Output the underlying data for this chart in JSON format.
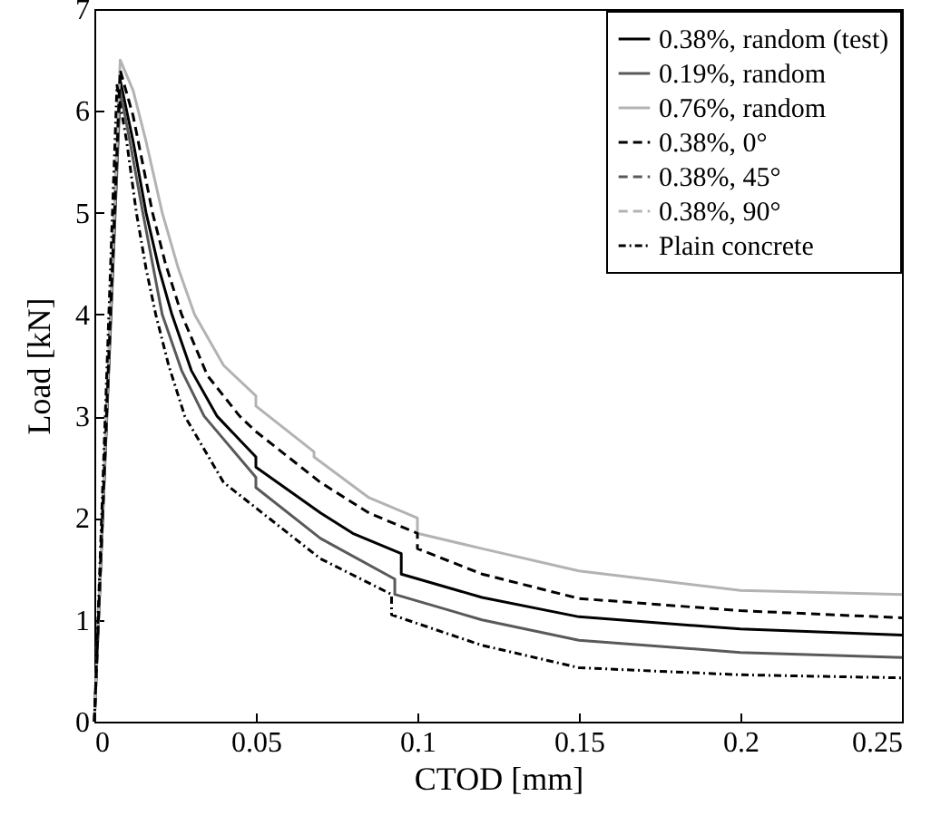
{
  "chart_data": {
    "type": "line",
    "xlabel": "CTOD [mm]",
    "ylabel": "Load [kN]",
    "xlim": [
      0,
      0.25
    ],
    "ylim": [
      0,
      7
    ],
    "xticks": [
      0,
      0.05,
      0.1,
      0.15,
      0.2,
      0.25
    ],
    "yticks": [
      0,
      1,
      2,
      3,
      4,
      5,
      6,
      7
    ],
    "grid": false,
    "legend": "top right",
    "marker": "none",
    "series": [
      {
        "name": "0.38%, random (test)",
        "color": "#000000",
        "line_style": "solid",
        "x": [
          0,
          0.008,
          0.012,
          0.016,
          0.02,
          0.024,
          0.03,
          0.038,
          0.05,
          0.05,
          0.07,
          0.08,
          0.095,
          0.095,
          0.12,
          0.15,
          0.2,
          0.25
        ],
        "values": [
          0,
          6.3,
          5.7,
          5.0,
          4.45,
          4.0,
          3.45,
          3.0,
          2.6,
          2.5,
          2.05,
          1.85,
          1.65,
          1.45,
          1.22,
          1.03,
          0.91,
          0.85
        ]
      },
      {
        "name": "0.19%, random",
        "color": "#595959",
        "line_style": "solid",
        "x": [
          0,
          0.008,
          0.011,
          0.015,
          0.018,
          0.021,
          0.027,
          0.034,
          0.05,
          0.05,
          0.07,
          0.093,
          0.093,
          0.12,
          0.15,
          0.2,
          0.25
        ],
        "values": [
          0,
          6.2,
          5.7,
          5.0,
          4.5,
          4.0,
          3.45,
          3.0,
          2.4,
          2.3,
          1.8,
          1.4,
          1.25,
          1.0,
          0.8,
          0.68,
          0.63
        ]
      },
      {
        "name": "0.76%, random",
        "color": "#b3b3b3",
        "line_style": "solid",
        "x": [
          0,
          0.008,
          0.012,
          0.016,
          0.021,
          0.026,
          0.031,
          0.04,
          0.05,
          0.05,
          0.068,
          0.068,
          0.085,
          0.1,
          0.1,
          0.12,
          0.15,
          0.2,
          0.25
        ],
        "values": [
          0,
          6.5,
          6.2,
          5.7,
          5.0,
          4.45,
          4.0,
          3.5,
          3.2,
          3.1,
          2.65,
          2.6,
          2.2,
          2.0,
          1.85,
          1.7,
          1.48,
          1.29,
          1.25
        ]
      },
      {
        "name": "0.38%, 0°",
        "color": "#000000",
        "line_style": "dashed",
        "x": [
          0,
          0.008,
          0.012,
          0.018,
          0.022,
          0.027,
          0.035,
          0.045,
          0.05,
          0.07,
          0.085,
          0.1,
          0.1,
          0.12,
          0.15,
          0.2,
          0.25
        ],
        "values": [
          0,
          6.4,
          5.95,
          5.0,
          4.5,
          4.0,
          3.4,
          3.0,
          2.85,
          2.35,
          2.05,
          1.85,
          1.7,
          1.45,
          1.21,
          1.09,
          1.02
        ]
      },
      {
        "name": "0.38%, 45°",
        "color": "#595959",
        "line_style": "dashed"
      },
      {
        "name": "0.38%, 90°",
        "color": "#b3b3b3",
        "line_style": "dashed"
      },
      {
        "name": "Plain concrete",
        "color": "#000000",
        "line_style": "dotted",
        "x": [
          0,
          0.007,
          0.01,
          0.013,
          0.016,
          0.019,
          0.023,
          0.028,
          0.04,
          0.05,
          0.054,
          0.07,
          0.092,
          0.092,
          0.12,
          0.15,
          0.2,
          0.25
        ],
        "values": [
          0,
          6.25,
          5.7,
          5.0,
          4.45,
          4.0,
          3.5,
          3.0,
          2.35,
          2.1,
          2.0,
          1.6,
          1.25,
          1.05,
          0.75,
          0.53,
          0.46,
          0.43
        ]
      }
    ]
  }
}
